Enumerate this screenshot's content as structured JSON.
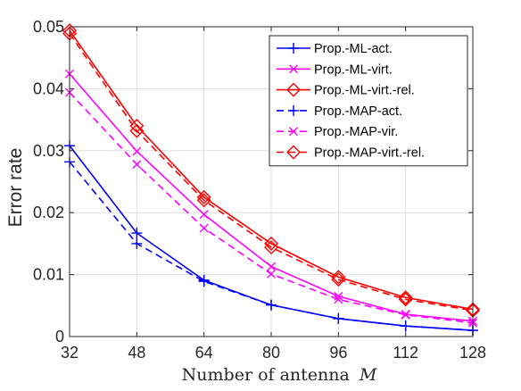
{
  "chart_data": {
    "type": "line",
    "title": "",
    "xlabel": "Number of antenna",
    "xlabel_symbol": "M",
    "ylabel": "Error rate",
    "x": [
      32,
      48,
      64,
      80,
      96,
      112,
      128
    ],
    "x_tick_labels": [
      "32",
      "48",
      "64",
      "80",
      "96",
      "112",
      "128"
    ],
    "y_tick_labels": [
      "0",
      "0.01",
      "0.02",
      "0.03",
      "0.04",
      "0.05"
    ],
    "xlim": [
      32,
      128
    ],
    "ylim": [
      0,
      0.05
    ],
    "grid": true,
    "legend_position": "top-right",
    "series": [
      {
        "name": "Prop.-ML-act.",
        "color": "#0000ff",
        "dash": "solid",
        "marker": "plus",
        "values": [
          0.0308,
          0.0167,
          0.0091,
          0.0051,
          0.0029,
          0.0017,
          0.001
        ]
      },
      {
        "name": "Prop.-ML-virt.",
        "color": "#ff00ff",
        "dash": "solid",
        "marker": "x",
        "values": [
          0.0424,
          0.0299,
          0.0197,
          0.0113,
          0.0065,
          0.0036,
          0.0025
        ]
      },
      {
        "name": "Prop.-ML-virt.-rel.",
        "color": "#ff0000",
        "dash": "solid",
        "marker": "diamond",
        "values": [
          0.0494,
          0.034,
          0.0225,
          0.015,
          0.0096,
          0.0063,
          0.0044
        ]
      },
      {
        "name": "Prop.-MAP-act.",
        "color": "#0000ff",
        "dash": "dashed",
        "marker": "plus",
        "values": [
          0.0282,
          0.015,
          0.0089,
          0.0051,
          0.0029,
          0.0017,
          0.001
        ]
      },
      {
        "name": "Prop.-MAP-vir.",
        "color": "#ff00ff",
        "dash": "dashed",
        "marker": "x",
        "values": [
          0.0394,
          0.0278,
          0.0175,
          0.0101,
          0.006,
          0.0035,
          0.0022
        ]
      },
      {
        "name": "Prop.-MAP-virt.-rel.",
        "color": "#ff0000",
        "dash": "dashed",
        "marker": "diamond",
        "values": [
          0.0489,
          0.0332,
          0.022,
          0.0144,
          0.0092,
          0.006,
          0.0042
        ]
      }
    ]
  }
}
